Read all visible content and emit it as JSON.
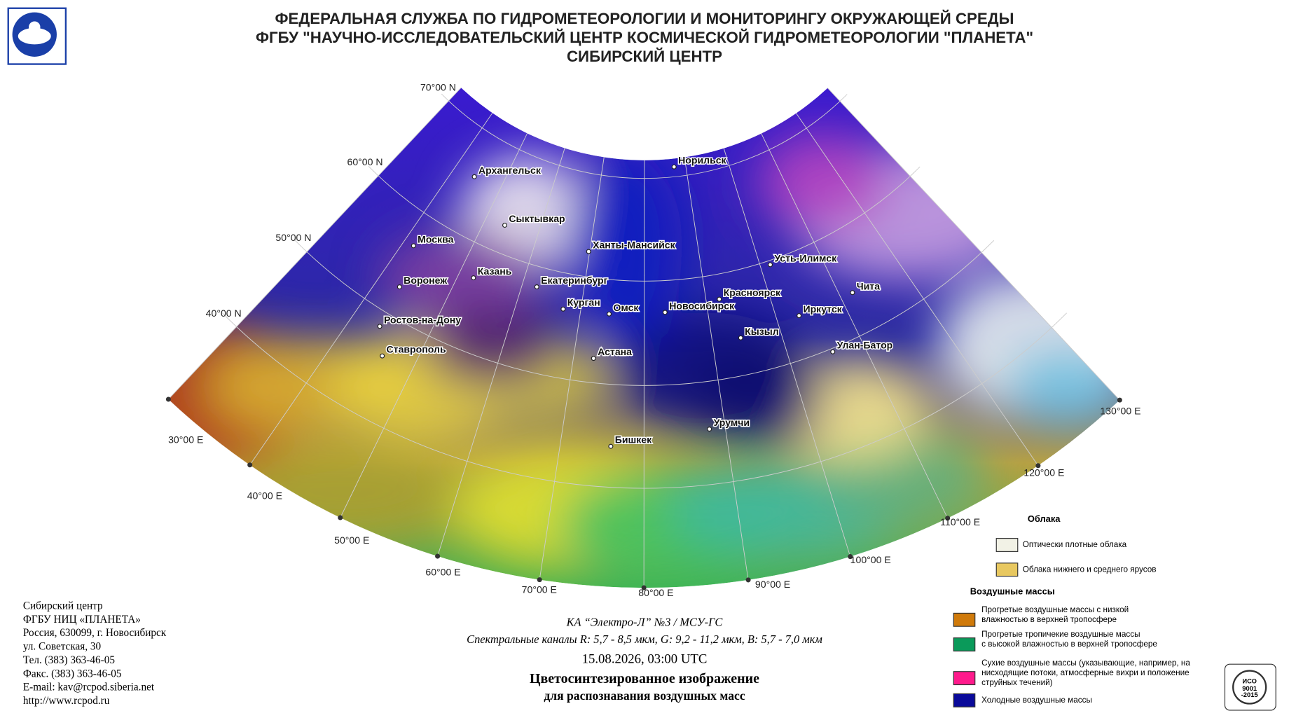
{
  "header": {
    "lines": [
      "ФЕДЕРАЛЬНАЯ СЛУЖБА ПО ГИДРОМЕТЕОРОЛОГИИ И МОНИТОРИНГУ ОКРУЖАЮЩЕЙ СРЕДЫ",
      "ФГБУ \"НАУЧНО-ИССЛЕДОВАТЕЛЬСКИЙ ЦЕНТР КОСМИЧЕСКОЙ ГИДРОМЕТЕОРОЛОГИИ \"ПЛАНЕТА\"",
      "СИБИРСКИЙ ЦЕНТР"
    ]
  },
  "map": {
    "lat_labels": [
      "70°00 N",
      "60°00 N",
      "50°00 N",
      "40°00 N"
    ],
    "lon_labels": [
      "30°00 E",
      "40°00 E",
      "50°00 E",
      "60°00 E",
      "70°00 E",
      "80°00 E",
      "90°00 E",
      "100°00 E",
      "110°00 E",
      "120°00 E",
      "130°00 E"
    ],
    "cities": [
      "Архангельск",
      "Норильск",
      "Сыктывкар",
      "Ханты-Мансийск",
      "Москва",
      "Усть-Илимск",
      "Казань",
      "Воронеж",
      "Екатеринбург",
      "Чита",
      "Красноярск",
      "Курган",
      "Омск",
      "Новосибирск",
      "Иркутск",
      "Ростов-на-Дону",
      "Кызыл",
      "Улан-Батор",
      "Астана",
      "Ставрополь",
      "Бишкек",
      "Урумчи"
    ]
  },
  "legend": {
    "clouds_title": "Облака",
    "clouds": [
      {
        "color": "#f2f2e6",
        "lines": [
          "Оптически плотные облака"
        ]
      },
      {
        "color": "#e8c860",
        "lines": [
          "Облака нижнего и среднего ярусов"
        ]
      }
    ],
    "air_title": "Воздушные массы",
    "air": [
      {
        "color": "#d07a0a",
        "lines": [
          "Прогретые воздушные массы с низкой",
          "влажностью в верхней тропосфере"
        ]
      },
      {
        "color": "#0a9a5a",
        "lines": [
          "Прогретые тропичекие воздушные массы",
          "с высокой влажностью в верхней тропосфере"
        ]
      },
      {
        "color": "#ff1a8c",
        "lines": [
          "Сухие воздушные массы (указывающие, например, на",
          "нисходящие потоки, атмосферные вихри и положение",
          "струйных течений)"
        ]
      },
      {
        "color": "#0a0a9a",
        "lines": [
          "Холодные воздушные массы"
        ]
      }
    ]
  },
  "contact": {
    "lines": [
      "Сибирский центр",
      "ФГБУ НИЦ «ПЛАНЕТА»",
      "Россия, 630099, г. Новосибирск",
      "ул. Советская, 30",
      "Тел. (383) 363-46-05",
      "Факс. (383) 363-46-05",
      "E-mail: kav@rcpod.siberia.net",
      "http://www.rcpod.ru"
    ]
  },
  "caption": {
    "satellite": "КА “Электро-Л” №3 / МСУ-ГС",
    "channels": "Спектральные каналы R: 5,7 - 8,5 мкм, G: 9,2 - 11,2 мкм, B: 5,7 - 7,0 мкм",
    "datetime": "15.08.2026, 03:00 UTC",
    "title": [
      "Цветосинтезированное изображение",
      "для распознавания воздушных масс"
    ]
  },
  "badge": {
    "lines": [
      "ИСО",
      "9001",
      "-2015"
    ]
  }
}
